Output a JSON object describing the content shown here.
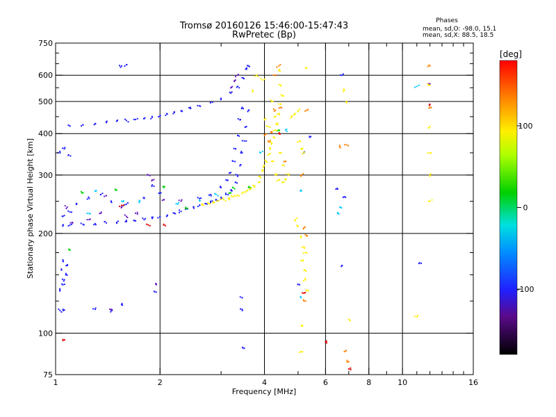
{
  "chart_data": {
    "type": "scatter",
    "title_line1": "Tromsø 20160126 15:46:00-15:47:43",
    "title_line2": "RwPretec (Bp)",
    "stats": {
      "heading": "Phases",
      "line_o": "mean, sd,O: -98.0, 15.1",
      "line_x": "mean, sd,X:  88.5, 18.5"
    },
    "xlabel": "Frequency [MHz]",
    "ylabel": "Stationary phase Virtual Height [km]",
    "x_scale": "log",
    "y_scale": "log",
    "xlim": [
      1,
      16
    ],
    "ylim": [
      75,
      750
    ],
    "x_ticks": [
      1,
      2,
      4,
      6,
      8,
      10,
      16
    ],
    "x_minor_ticks": [
      3,
      5,
      7,
      9,
      11,
      12,
      13,
      14,
      15
    ],
    "y_ticks": [
      75,
      100,
      200,
      300,
      400,
      500,
      600,
      750
    ],
    "y_minor_ticks": [
      125,
      150,
      175,
      250,
      350,
      450,
      550,
      650,
      700
    ],
    "x_grid": [
      2,
      4,
      6,
      8,
      10
    ],
    "y_grid": [
      100,
      200,
      300,
      400,
      500,
      600
    ],
    "grid": true,
    "colorbar": {
      "label": "[deg]",
      "min": -180,
      "max": 180,
      "ticks": [
        100,
        0,
        -100
      ]
    },
    "series": [
      {
        "color": "#2020ff",
        "phase": -100,
        "points": [
          [
            1.1,
            422
          ],
          [
            1.2,
            425
          ],
          [
            1.3,
            428
          ],
          [
            1.4,
            432
          ],
          [
            1.5,
            436
          ],
          [
            1.6,
            438
          ],
          [
            1.7,
            441
          ],
          [
            1.8,
            444
          ],
          [
            1.9,
            448
          ],
          [
            2.0,
            452
          ],
          [
            2.1,
            458
          ],
          [
            2.2,
            463
          ],
          [
            2.3,
            468
          ],
          [
            2.45,
            476
          ],
          [
            2.6,
            485
          ],
          [
            2.8,
            496
          ],
          [
            3.0,
            510
          ],
          [
            3.2,
            530
          ],
          [
            3.35,
            555
          ],
          [
            3.45,
            590
          ],
          [
            3.55,
            625
          ],
          [
            3.6,
            640
          ],
          [
            1.55,
            640
          ],
          [
            1.6,
            645
          ],
          [
            1.05,
            212
          ],
          [
            1.1,
            212
          ],
          [
            1.2,
            213
          ],
          [
            1.3,
            214
          ],
          [
            1.4,
            215
          ],
          [
            1.5,
            216
          ],
          [
            1.6,
            217
          ],
          [
            1.7,
            218
          ],
          [
            1.8,
            220
          ],
          [
            1.9,
            222
          ],
          [
            2.0,
            224
          ],
          [
            2.1,
            227
          ],
          [
            2.2,
            230
          ],
          [
            2.3,
            233
          ],
          [
            2.4,
            237
          ],
          [
            2.5,
            240
          ],
          [
            2.6,
            243
          ],
          [
            2.7,
            246
          ],
          [
            2.8,
            250
          ],
          [
            2.9,
            253
          ],
          [
            3.0,
            257
          ],
          [
            3.1,
            262
          ],
          [
            3.2,
            270
          ],
          [
            3.3,
            285
          ],
          [
            3.35,
            300
          ],
          [
            3.4,
            320
          ],
          [
            3.45,
            350
          ],
          [
            3.5,
            380
          ],
          [
            3.55,
            420
          ],
          [
            3.6,
            470
          ],
          [
            1.05,
            225
          ],
          [
            1.1,
            232
          ],
          [
            1.15,
            245
          ],
          [
            1.25,
            255
          ],
          [
            1.35,
            262
          ],
          [
            1.45,
            248
          ],
          [
            1.6,
            245
          ],
          [
            1.8,
            255
          ],
          [
            2.0,
            265
          ],
          [
            1.9,
            280
          ],
          [
            2.6,
            255
          ],
          [
            2.8,
            262
          ],
          [
            3.0,
            275
          ],
          [
            3.1,
            290
          ],
          [
            3.2,
            305
          ],
          [
            3.25,
            330
          ],
          [
            3.3,
            360
          ],
          [
            3.35,
            395
          ],
          [
            3.4,
            440
          ],
          [
            3.45,
            480
          ],
          [
            1.03,
            135
          ],
          [
            1.05,
            140
          ],
          [
            1.06,
            145
          ],
          [
            1.07,
            150
          ],
          [
            1.04,
            155
          ],
          [
            1.08,
            160
          ],
          [
            1.05,
            165
          ],
          [
            1.03,
            350
          ],
          [
            1.06,
            360
          ],
          [
            1.09,
            345
          ],
          [
            1.03,
            117
          ],
          [
            1.05,
            118
          ],
          [
            1.3,
            118
          ],
          [
            1.45,
            117
          ],
          [
            1.55,
            122
          ],
          [
            1.95,
            133
          ],
          [
            3.45,
            128
          ],
          [
            3.45,
            118
          ],
          [
            3.5,
            90
          ],
          [
            5.05,
            140
          ],
          [
            6.7,
            160
          ],
          [
            11.2,
            163
          ],
          [
            5.4,
            390
          ],
          [
            5.2,
            352
          ],
          [
            6.5,
            272
          ],
          [
            6.8,
            258
          ],
          [
            6.7,
            600
          ]
        ]
      },
      {
        "color": "#6a1bc0",
        "phase": -130,
        "points": [
          [
            1.12,
            215
          ],
          [
            1.25,
            220
          ],
          [
            1.4,
            260
          ],
          [
            1.55,
            240
          ],
          [
            1.7,
            230
          ],
          [
            1.85,
            300
          ],
          [
            1.9,
            290
          ],
          [
            2.05,
            253
          ],
          [
            1.45,
            118
          ],
          [
            1.95,
            140
          ],
          [
            3.35,
            600
          ],
          [
            3.3,
            580
          ],
          [
            3.2,
            550
          ],
          [
            1.6,
            225
          ],
          [
            2.3,
            250
          ],
          [
            1.08,
            240
          ],
          [
            1.35,
            230
          ],
          [
            12.0,
            565
          ]
        ]
      },
      {
        "color": "#00c8ff",
        "phase": -40,
        "points": [
          [
            1.25,
            230
          ],
          [
            1.55,
            250
          ],
          [
            2.25,
            245
          ],
          [
            2.6,
            252
          ],
          [
            2.9,
            262
          ],
          [
            1.3,
            268
          ],
          [
            1.75,
            250
          ],
          [
            3.9,
            350
          ],
          [
            4.6,
            410
          ],
          [
            5.1,
            270
          ],
          [
            6.5,
            230
          ],
          [
            6.6,
            240
          ],
          [
            11.0,
            555
          ],
          [
            5.1,
            128
          ]
        ]
      },
      {
        "color": "#00d000",
        "phase": 40,
        "points": [
          [
            1.1,
            178
          ],
          [
            1.5,
            270
          ],
          [
            2.05,
            275
          ],
          [
            2.4,
            238
          ],
          [
            3.2,
            265
          ],
          [
            3.25,
            275
          ],
          [
            3.6,
            275
          ],
          [
            1.2,
            265
          ],
          [
            4.4,
            410
          ]
        ]
      },
      {
        "color": "#ffee00",
        "phase": 100,
        "points": [
          [
            2.65,
            245
          ],
          [
            2.75,
            247
          ],
          [
            2.85,
            249
          ],
          [
            2.95,
            251
          ],
          [
            3.05,
            253
          ],
          [
            3.15,
            255
          ],
          [
            3.25,
            258
          ],
          [
            3.35,
            261
          ],
          [
            3.45,
            264
          ],
          [
            3.55,
            268
          ],
          [
            3.65,
            272
          ],
          [
            3.75,
            278
          ],
          [
            3.85,
            285
          ],
          [
            3.9,
            295
          ],
          [
            3.95,
            308
          ],
          [
            4.0,
            320
          ],
          [
            4.05,
            330
          ],
          [
            4.1,
            345
          ],
          [
            4.15,
            360
          ],
          [
            4.2,
            375
          ],
          [
            4.25,
            390
          ],
          [
            4.3,
            410
          ],
          [
            4.35,
            430
          ],
          [
            4.4,
            460
          ],
          [
            4.45,
            490
          ],
          [
            4.5,
            520
          ],
          [
            4.45,
            560
          ],
          [
            4.4,
            620
          ],
          [
            4.2,
            330
          ],
          [
            4.3,
            300
          ],
          [
            4.4,
            290
          ],
          [
            4.5,
            285
          ],
          [
            4.6,
            290
          ],
          [
            3.7,
            540
          ],
          [
            3.8,
            600
          ],
          [
            3.95,
            580
          ],
          [
            4.0,
            440
          ],
          [
            4.1,
            420
          ],
          [
            4.3,
            450
          ],
          [
            4.2,
            500
          ],
          [
            4.45,
            350
          ],
          [
            4.55,
            320
          ],
          [
            4.7,
            300
          ],
          [
            4.8,
            450
          ],
          [
            4.9,
            460
          ],
          [
            5.0,
            470
          ],
          [
            5.05,
            380
          ],
          [
            5.1,
            360
          ],
          [
            5.2,
            350
          ],
          [
            5.3,
            630
          ],
          [
            4.9,
            220
          ],
          [
            5.0,
            210
          ],
          [
            5.1,
            195
          ],
          [
            5.2,
            182
          ],
          [
            5.25,
            175
          ],
          [
            5.15,
            165
          ],
          [
            5.2,
            155
          ],
          [
            5.25,
            145
          ],
          [
            5.3,
            135
          ],
          [
            5.15,
            105
          ],
          [
            5.1,
            88
          ],
          [
            6.8,
            540
          ],
          [
            6.9,
            500
          ],
          [
            7.0,
            110
          ],
          [
            12.0,
            250
          ],
          [
            12.0,
            300
          ],
          [
            12.0,
            350
          ],
          [
            12.0,
            420
          ],
          [
            12.0,
            560
          ],
          [
            11.0,
            112
          ]
        ]
      },
      {
        "color": "#ff8000",
        "phase": 150,
        "points": [
          [
            4.0,
            395
          ],
          [
            4.1,
            380
          ],
          [
            4.2,
            405
          ],
          [
            4.25,
            600
          ],
          [
            4.4,
            640
          ],
          [
            4.3,
            470
          ],
          [
            4.45,
            480
          ],
          [
            5.2,
            208
          ],
          [
            5.25,
            198
          ],
          [
            5.3,
            470
          ],
          [
            4.6,
            330
          ],
          [
            5.2,
            125
          ],
          [
            6.6,
            365
          ],
          [
            6.9,
            370
          ],
          [
            7.0,
            82
          ],
          [
            6.8,
            88
          ],
          [
            12.0,
            640
          ],
          [
            12.0,
            480
          ],
          [
            5.1,
            300
          ]
        ]
      },
      {
        "color": "#e00000",
        "phase": 175,
        "points": [
          [
            1.55,
            243
          ],
          [
            1.85,
            212
          ],
          [
            2.05,
            212
          ],
          [
            4.4,
            400
          ],
          [
            6.0,
            94
          ],
          [
            5.2,
            132
          ],
          [
            7.0,
            78
          ],
          [
            12.0,
            490
          ],
          [
            1.05,
            95
          ]
        ]
      }
    ]
  }
}
